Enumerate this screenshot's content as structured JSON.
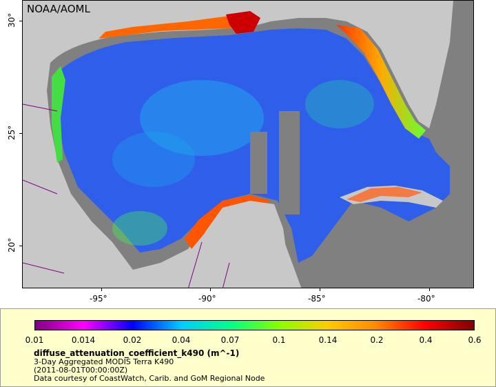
{
  "map": {
    "credit": "NOAA/AOML",
    "x_ticks": [
      "-95°",
      "-90°",
      "-85°",
      "-80°"
    ],
    "y_ticks": [
      "30°",
      "25°",
      "20°"
    ],
    "colors": {
      "land": "#c8c8c8",
      "no_data": "#808080",
      "borders": "#800080",
      "rivers": "#6699cc"
    }
  },
  "legend": {
    "colorbar_labels": [
      "0.01",
      "0.014",
      "0.02",
      "0.04",
      "0.07",
      "0.1",
      "0.14",
      "0.2",
      "0.4",
      "0.6"
    ],
    "colorbar_colors": [
      "#800080",
      "#ff00ff",
      "#0000ff",
      "#00ccff",
      "#00ff88",
      "#88ff00",
      "#ffcc00",
      "#ff8800",
      "#ff0000",
      "#800000"
    ],
    "variable": "diffuse_attenuation_coefficient_k490 (m^-1)",
    "dataset": "3-Day Aggregated MODIS Terra K490",
    "time": "(2011-08-01T00:00:00Z)",
    "courtesy": "Data courtesy of CoastWatch, Carib. and GoM Regional Node"
  }
}
